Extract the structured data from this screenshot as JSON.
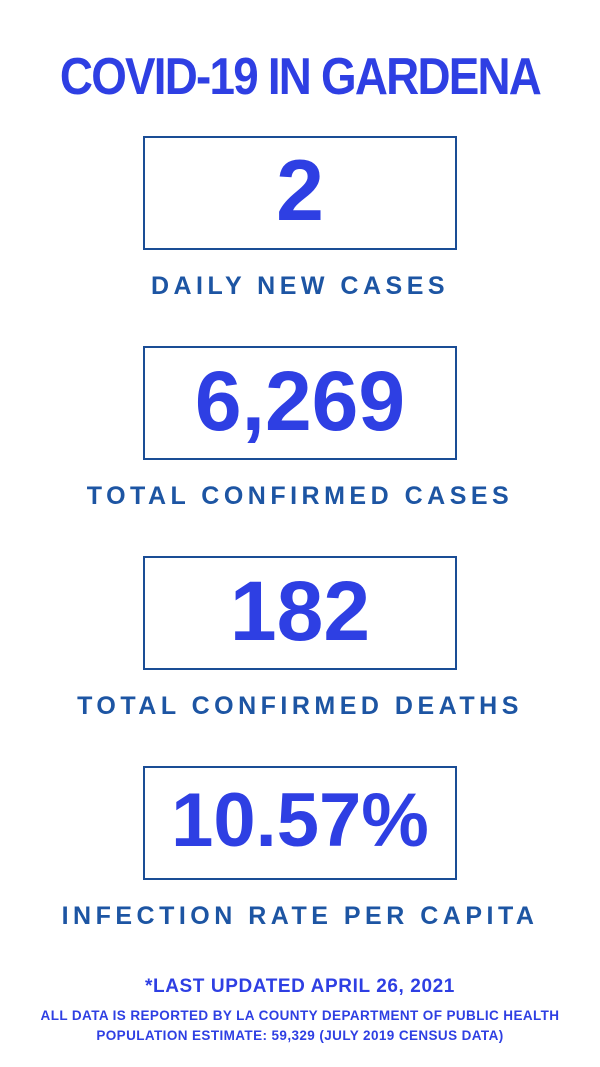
{
  "page": {
    "title": "COVID-19 IN GARDENA"
  },
  "stats": [
    {
      "value": "2",
      "label": "DAILY NEW CASES"
    },
    {
      "value": "6,269",
      "label": "TOTAL CONFIRMED CASES"
    },
    {
      "value": "182",
      "label": "TOTAL CONFIRMED DEATHS"
    },
    {
      "value": "10.57%",
      "label": "INFECTION RATE PER CAPITA"
    }
  ],
  "footer": {
    "updated": "*LAST UPDATED APRIL 26, 2021",
    "source": "ALL DATA IS REPORTED BY LA COUNTY DEPARTMENT OF PUBLIC HEALTH",
    "population": "POPULATION ESTIMATE: 59,329 (JULY 2019 CENSUS DATA)"
  },
  "colors": {
    "accent_blue": "#2e3fe3",
    "label_navy": "#1d55a3",
    "box_border_navy": "#1a4d95",
    "background": "#ffffff"
  }
}
